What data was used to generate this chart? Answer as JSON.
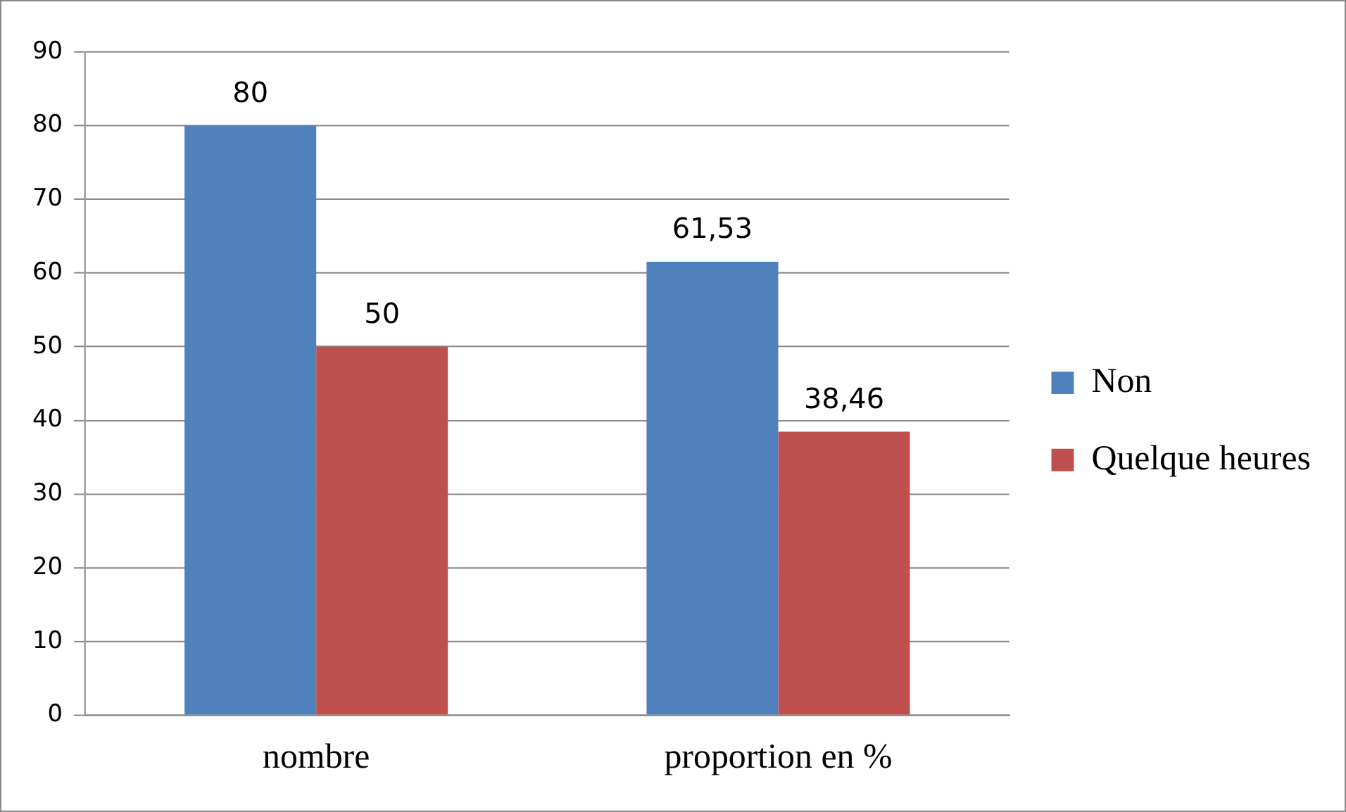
{
  "chart_data": {
    "type": "bar",
    "categories": [
      "nombre",
      "proportion en %"
    ],
    "series": [
      {
        "name": "Non",
        "color": "#4f81bd",
        "values": [
          80,
          61.53
        ],
        "value_labels": [
          "80",
          "61,53"
        ]
      },
      {
        "name": "Quelque heures",
        "color": "#c0504d",
        "values": [
          50,
          38.46
        ],
        "value_labels": [
          "50",
          "38,46"
        ]
      }
    ],
    "ylim": [
      0,
      90
    ],
    "yticks": [
      0,
      10,
      20,
      30,
      40,
      50,
      60,
      70,
      80,
      90
    ],
    "grid": "y",
    "legend": "right"
  }
}
